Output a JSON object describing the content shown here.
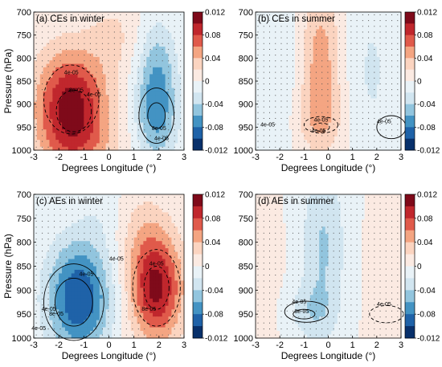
{
  "chart_data": [
    {
      "type": "heatmap",
      "title": "(a) CEs in winter",
      "xlabel": "Degrees Longitude (°)",
      "ylabel": "Pressure (hPa)",
      "xlim": [
        -3,
        3
      ],
      "ylim": [
        1000,
        700
      ],
      "xticks": [
        "-3",
        "-2",
        "-1",
        "0",
        "1",
        "2",
        "3"
      ],
      "yticks": [
        "700",
        "750",
        "800",
        "850",
        "900",
        "950",
        "1000"
      ],
      "colorbar": {
        "ticks": [
          "0.012",
          "0.08",
          "0.04",
          "0",
          "-0.04",
          "-0.08",
          "-0.012"
        ]
      },
      "features": [
        {
          "x": -1.5,
          "p": 905,
          "amp": 0.112,
          "sx": 1.0,
          "sp": 85
        },
        {
          "x": 0.2,
          "p": 750,
          "amp": 0.022,
          "sx": 0.7,
          "sp": 60
        },
        {
          "x": 1.9,
          "p": 905,
          "amp": -0.075,
          "sx": 0.6,
          "sp": 85
        },
        {
          "x": 2.0,
          "p": 780,
          "amp": -0.02,
          "sx": 0.5,
          "sp": 60
        },
        {
          "x": -1.0,
          "p": 990,
          "amp": 0.02,
          "sx": 1.2,
          "sp": 40
        }
      ],
      "contour_labels": [
        "4e-05",
        "8e-05",
        "4e-05",
        "8e-05",
        "4e-05"
      ]
    },
    {
      "type": "heatmap",
      "title": "(b) CEs in summer",
      "xlabel": "Degrees Longitude (°)",
      "ylabel": "",
      "xlim": [
        -3,
        3
      ],
      "ylim": [
        1000,
        700
      ],
      "xticks": [
        "-3",
        "-2",
        "-1",
        "0",
        "1",
        "2",
        "3"
      ],
      "yticks": [
        "700",
        "750",
        "800",
        "850",
        "900",
        "950",
        "1000"
      ],
      "colorbar": {
        "ticks": [
          "0.012",
          "0.08",
          "0.04",
          "0",
          "-0.04",
          "-0.08",
          "-0.012"
        ]
      },
      "features": [
        {
          "x": -0.3,
          "p": 810,
          "amp": 0.05,
          "sx": 0.55,
          "sp": 120
        },
        {
          "x": -0.4,
          "p": 930,
          "amp": 0.022,
          "sx": 0.8,
          "sp": 50
        },
        {
          "x": -1.9,
          "p": 830,
          "amp": -0.016,
          "sx": 0.45,
          "sp": 150
        },
        {
          "x": 1.8,
          "p": 830,
          "amp": -0.022,
          "sx": 0.7,
          "sp": 150
        }
      ],
      "contour_labels": [
        "4e-05",
        "4e-05",
        "4e-05",
        "4e-05"
      ]
    },
    {
      "type": "heatmap",
      "title": "(c) AEs in winter",
      "xlabel": "Degrees Longitude (°)",
      "ylabel": "Pressure (hPa)",
      "xlim": [
        -3,
        3
      ],
      "ylim": [
        1000,
        700
      ],
      "xticks": [
        "-3",
        "-2",
        "-1",
        "0",
        "1",
        "2",
        "3"
      ],
      "yticks": [
        "700",
        "750",
        "800",
        "850",
        "900",
        "950",
        "1000"
      ],
      "colorbar": {
        "ticks": [
          "0.012",
          "0.08",
          "0.04",
          "0",
          "-0.04",
          "-0.08",
          "-0.012"
        ]
      },
      "features": [
        {
          "x": -1.2,
          "p": 915,
          "amp": -0.1,
          "sx": 0.9,
          "sp": 85
        },
        {
          "x": 1.9,
          "p": 895,
          "amp": 0.105,
          "sx": 0.75,
          "sp": 80
        },
        {
          "x": -0.3,
          "p": 720,
          "amp": -0.012,
          "sx": 0.6,
          "sp": 60
        },
        {
          "x": 1.3,
          "p": 780,
          "amp": 0.02,
          "sx": 0.7,
          "sp": 70
        }
      ],
      "contour_labels": [
        "4e-05",
        "4e-05",
        "8e-05",
        "4e-05",
        "4e-05",
        "8e-05",
        "4e-05"
      ]
    },
    {
      "type": "heatmap",
      "title": "(d) AEs in summer",
      "xlabel": "Degrees Longitude (°)",
      "ylabel": "",
      "xlim": [
        -3,
        3
      ],
      "ylim": [
        1000,
        700
      ],
      "xticks": [
        "-3",
        "-2",
        "-1",
        "0",
        "1",
        "2",
        "3"
      ],
      "yticks": [
        "700",
        "750",
        "800",
        "850",
        "900",
        "950",
        "1000"
      ],
      "colorbar": {
        "ticks": [
          "0.012",
          "0.08",
          "0.04",
          "0",
          "-0.04",
          "-0.08",
          "-0.012"
        ]
      },
      "features": [
        {
          "x": -0.2,
          "p": 810,
          "amp": -0.042,
          "sx": 0.65,
          "sp": 130
        },
        {
          "x": -0.8,
          "p": 945,
          "amp": -0.025,
          "sx": 0.7,
          "sp": 40
        },
        {
          "x": 2.3,
          "p": 880,
          "amp": 0.008,
          "sx": 0.6,
          "sp": 120
        },
        {
          "x": -2.4,
          "p": 880,
          "amp": 0.006,
          "sx": 0.5,
          "sp": 120
        }
      ],
      "contour_labels": [
        "4e-05",
        "8e-05",
        "4e-05"
      ]
    }
  ]
}
